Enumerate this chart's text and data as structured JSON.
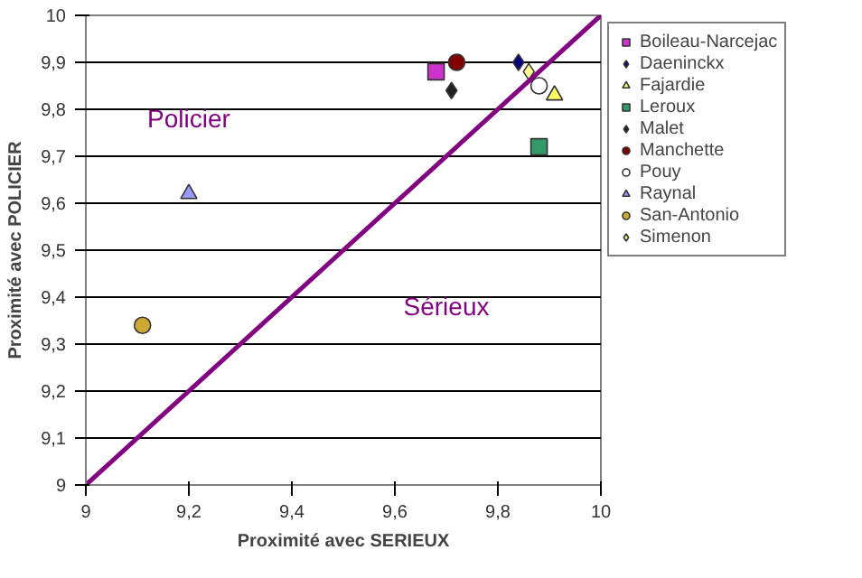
{
  "chart_data": {
    "type": "scatter",
    "xlabel": "Proximité avec SERIEUX",
    "ylabel": "Proximité avec POLICIER",
    "xlim": [
      9,
      10
    ],
    "ylim": [
      9,
      10
    ],
    "xticks": [
      9,
      {
        "value": 9.2,
        "label": "9,2"
      },
      {
        "value": 9.4,
        "label": "9,4"
      },
      {
        "value": 9.6,
        "label": "9,6"
      },
      {
        "value": 9.8,
        "label": "9,8"
      },
      10
    ],
    "yticks": [
      9,
      {
        "value": 9.1,
        "label": "9,1"
      },
      {
        "value": 9.2,
        "label": "9,2"
      },
      {
        "value": 9.3,
        "label": "9,3"
      },
      {
        "value": 9.4,
        "label": "9,4"
      },
      {
        "value": 9.5,
        "label": "9,5"
      },
      {
        "value": 9.6,
        "label": "9,6"
      },
      {
        "value": 9.7,
        "label": "9,7"
      },
      {
        "value": 9.8,
        "label": "9,8"
      },
      {
        "value": 9.9,
        "label": "9,9"
      },
      10
    ],
    "grid": "y",
    "legend": "right",
    "annotations": [
      "Policier",
      "Sérieux"
    ],
    "series": [
      {
        "name": "Boileau-Narcejac",
        "color": "#cc33cc",
        "marker": "square",
        "x": [
          9.68
        ],
        "values": [
          9.88
        ]
      },
      {
        "name": "Daeninckx",
        "color": "#000080",
        "marker": "diamond",
        "x": [
          9.84
        ],
        "values": [
          9.9
        ]
      },
      {
        "name": "Fajardie",
        "color": "#ffff66",
        "marker": "triangle",
        "x": [
          9.91
        ],
        "values": [
          9.83
        ]
      },
      {
        "name": "Leroux",
        "color": "#339966",
        "marker": "square",
        "x": [
          9.88
        ],
        "values": [
          9.72
        ]
      },
      {
        "name": "Malet",
        "color": "#222222",
        "marker": "diamond",
        "x": [
          9.71
        ],
        "values": [
          9.84
        ]
      },
      {
        "name": "Manchette",
        "color": "#800000",
        "marker": "circle",
        "x": [
          9.72
        ],
        "values": [
          9.9
        ]
      },
      {
        "name": "Pouy",
        "color": "#ffffff",
        "marker": "circle",
        "x": [
          9.88
        ],
        "values": [
          9.85
        ]
      },
      {
        "name": "Raynal",
        "color": "#9999ff",
        "marker": "triangle",
        "x": [
          9.2
        ],
        "values": [
          9.62
        ]
      },
      {
        "name": "San-Antonio",
        "color": "#ccaa33",
        "marker": "circle",
        "x": [
          9.11
        ],
        "values": [
          9.34
        ]
      },
      {
        "name": "Simenon",
        "color": "#ffff99",
        "marker": "diamond",
        "x": [
          9.86
        ],
        "values": [
          9.88
        ]
      },
      {
        "type": "line",
        "color": "#800080",
        "x": [
          9,
          10
        ],
        "values": [
          9,
          10
        ]
      }
    ]
  }
}
